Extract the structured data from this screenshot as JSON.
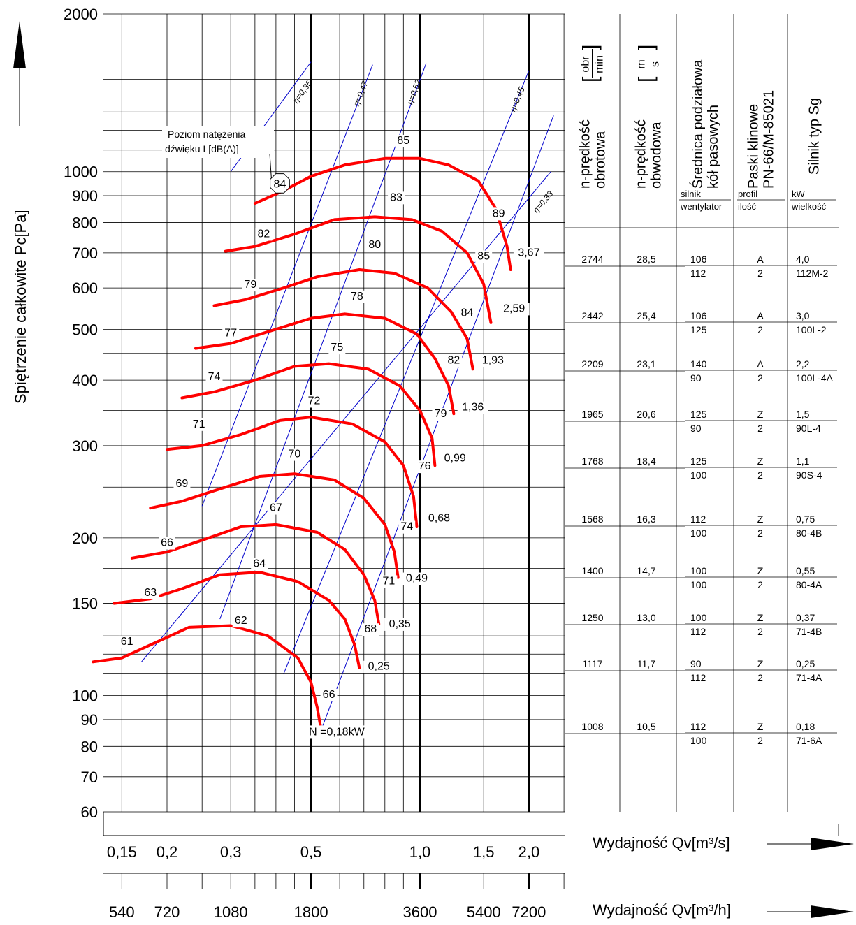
{
  "chart_data": {
    "type": "line",
    "y_axis_title": "Spiętrzenie  całkowite    Pc[Pa]",
    "x_axis_title_m3s": "Wydajność  Qv[m³/s]",
    "x_axis_title_m3h": "Wydajność  Qv[m³/h]",
    "y_scale": "log",
    "x_scale": "log",
    "ylim": [
      60,
      2000
    ],
    "xlim": [
      0.14,
      2.5
    ],
    "y_tick_labels": [
      {
        "v": 2000,
        "t": "2000"
      },
      {
        "v": 1000,
        "t": "1000"
      },
      {
        "v": 900,
        "t": "900"
      },
      {
        "v": 800,
        "t": "800"
      },
      {
        "v": 700,
        "t": "700"
      },
      {
        "v": 600,
        "t": "600"
      },
      {
        "v": 500,
        "t": "500"
      },
      {
        "v": 400,
        "t": "400"
      },
      {
        "v": 300,
        "t": "300"
      },
      {
        "v": 200,
        "t": "200"
      },
      {
        "v": 150,
        "t": "150"
      },
      {
        "v": 100,
        "t": "100"
      },
      {
        "v": 90,
        "t": "90"
      },
      {
        "v": 80,
        "t": "80"
      },
      {
        "v": 70,
        "t": "70"
      },
      {
        "v": 60,
        "t": "60"
      }
    ],
    "x_tick_labels_m3s": [
      {
        "v": 0.15,
        "t": "0,15"
      },
      {
        "v": 0.2,
        "t": "0,2"
      },
      {
        "v": 0.3,
        "t": "0,3"
      },
      {
        "v": 0.5,
        "t": "0,5"
      },
      {
        "v": 1.0,
        "t": "1,0"
      },
      {
        "v": 1.5,
        "t": "1,5"
      },
      {
        "v": 2.0,
        "t": "2,0"
      }
    ],
    "x_tick_labels_m3h": [
      {
        "v": 0.15,
        "t": "540"
      },
      {
        "v": 0.2,
        "t": "720"
      },
      {
        "v": 0.3,
        "t": "1080"
      },
      {
        "v": 0.5,
        "t": "1800"
      },
      {
        "v": 1.0,
        "t": "3600"
      },
      {
        "v": 1.5,
        "t": "5400"
      },
      {
        "v": 2.0,
        "t": "7200"
      }
    ],
    "efficiency_lines": [
      {
        "label": "η=0,35",
        "points": [
          [
            0.3,
            1000
          ],
          [
            0.5,
            1620
          ]
        ]
      },
      {
        "label": "η=0,47",
        "points": [
          [
            0.25,
            230
          ],
          [
            0.74,
            1600
          ]
        ]
      },
      {
        "label": "η=0,52",
        "points": [
          [
            0.28,
            140
          ],
          [
            1.04,
            1610
          ]
        ]
      },
      {
        "label": "η=0,45",
        "points": [
          [
            0.42,
            110
          ],
          [
            2.0,
            1560
          ]
        ]
      },
      {
        "label": "η=0,33",
        "points": [
          [
            0.17,
            116
          ],
          [
            2.3,
            1000
          ]
        ]
      }
    ],
    "power_line": [
      [
        0.53,
        85
      ],
      [
        2.34,
        1280
      ]
    ],
    "speed_curves": [
      {
        "rpm": 2744,
        "power": "3,67",
        "points": [
          [
            0.35,
            870
          ],
          [
            0.42,
            920
          ],
          [
            0.5,
            980
          ],
          [
            0.62,
            1030
          ],
          [
            0.8,
            1060
          ],
          [
            1.0,
            1060
          ],
          [
            1.2,
            1030
          ],
          [
            1.45,
            960
          ],
          [
            1.62,
            850
          ],
          [
            1.74,
            720
          ],
          [
            1.78,
            650
          ]
        ]
      },
      {
        "rpm": 2442,
        "power": "2,59",
        "points": [
          [
            0.29,
            705
          ],
          [
            0.35,
            720
          ],
          [
            0.45,
            760
          ],
          [
            0.58,
            810
          ],
          [
            0.75,
            820
          ],
          [
            0.95,
            810
          ],
          [
            1.15,
            770
          ],
          [
            1.35,
            700
          ],
          [
            1.5,
            610
          ],
          [
            1.57,
            515
          ]
        ]
      },
      {
        "rpm": 2209,
        "power": "1,93",
        "points": [
          [
            0.27,
            555
          ],
          [
            0.33,
            570
          ],
          [
            0.42,
            600
          ],
          [
            0.52,
            630
          ],
          [
            0.68,
            650
          ],
          [
            0.85,
            640
          ],
          [
            1.05,
            600
          ],
          [
            1.22,
            540
          ],
          [
            1.35,
            480
          ],
          [
            1.4,
            420
          ]
        ]
      },
      {
        "rpm": 1965,
        "power": "1,36",
        "points": [
          [
            0.24,
            460
          ],
          [
            0.3,
            470
          ],
          [
            0.38,
            495
          ],
          [
            0.5,
            525
          ],
          [
            0.62,
            535
          ],
          [
            0.8,
            525
          ],
          [
            0.98,
            490
          ],
          [
            1.1,
            440
          ],
          [
            1.2,
            390
          ],
          [
            1.24,
            345
          ]
        ]
      },
      {
        "rpm": 1768,
        "power": "0,99",
        "points": [
          [
            0.22,
            370
          ],
          [
            0.27,
            380
          ],
          [
            0.35,
            400
          ],
          [
            0.45,
            425
          ],
          [
            0.56,
            430
          ],
          [
            0.72,
            420
          ],
          [
            0.88,
            390
          ],
          [
            1.0,
            350
          ],
          [
            1.08,
            310
          ],
          [
            1.1,
            275
          ]
        ]
      },
      {
        "rpm": 1568,
        "power": "0,68",
        "points": [
          [
            0.2,
            295
          ],
          [
            0.25,
            300
          ],
          [
            0.32,
            315
          ],
          [
            0.41,
            335
          ],
          [
            0.5,
            340
          ],
          [
            0.65,
            330
          ],
          [
            0.8,
            305
          ],
          [
            0.9,
            275
          ],
          [
            0.96,
            240
          ],
          [
            0.98,
            210
          ]
        ]
      },
      {
        "rpm": 1400,
        "power": "0,49",
        "points": [
          [
            0.18,
            228
          ],
          [
            0.22,
            235
          ],
          [
            0.28,
            248
          ],
          [
            0.36,
            262
          ],
          [
            0.45,
            265
          ],
          [
            0.58,
            258
          ],
          [
            0.7,
            238
          ],
          [
            0.8,
            212
          ],
          [
            0.85,
            188
          ],
          [
            0.87,
            168
          ]
        ]
      },
      {
        "rpm": 1250,
        "power": "0,35",
        "points": [
          [
            0.16,
            183
          ],
          [
            0.2,
            188
          ],
          [
            0.25,
            198
          ],
          [
            0.32,
            210
          ],
          [
            0.4,
            212
          ],
          [
            0.52,
            205
          ],
          [
            0.62,
            190
          ],
          [
            0.7,
            170
          ],
          [
            0.75,
            152
          ],
          [
            0.77,
            137
          ]
        ]
      },
      {
        "rpm": 1117,
        "power": "0,25",
        "points": [
          [
            0.143,
            150
          ],
          [
            0.18,
            153
          ],
          [
            0.22,
            160
          ],
          [
            0.28,
            170
          ],
          [
            0.36,
            172
          ],
          [
            0.46,
            165
          ],
          [
            0.56,
            152
          ],
          [
            0.62,
            140
          ],
          [
            0.66,
            125
          ],
          [
            0.68,
            113
          ]
        ]
      },
      {
        "rpm": 1008,
        "power": "N  =0,18kW",
        "points": [
          [
            0.125,
            116
          ],
          [
            0.15,
            118
          ],
          [
            0.18,
            125
          ],
          [
            0.23,
            135
          ],
          [
            0.3,
            136
          ],
          [
            0.38,
            130
          ],
          [
            0.46,
            118
          ],
          [
            0.5,
            106
          ],
          [
            0.52,
            95
          ],
          [
            0.535,
            85
          ]
        ]
      }
    ],
    "sound_labels": [
      {
        "t": "85",
        "x": 0.9,
        "y": 1130
      },
      {
        "t": "89",
        "x": 1.65,
        "y": 820
      },
      {
        "t": "82",
        "x": 0.37,
        "y": 750
      },
      {
        "t": "83",
        "x": 0.86,
        "y": 880
      },
      {
        "t": "85",
        "x": 1.5,
        "y": 680
      },
      {
        "t": "79",
        "x": 0.34,
        "y": 600
      },
      {
        "t": "80",
        "x": 0.75,
        "y": 715
      },
      {
        "t": "84",
        "x": 1.35,
        "y": 530
      },
      {
        "t": "77",
        "x": 0.3,
        "y": 485
      },
      {
        "t": "78",
        "x": 0.67,
        "y": 570
      },
      {
        "t": "82",
        "x": 1.24,
        "y": 430
      },
      {
        "t": "74",
        "x": 0.27,
        "y": 400
      },
      {
        "t": "75",
        "x": 0.59,
        "y": 455
      },
      {
        "t": "79",
        "x": 1.14,
        "y": 340
      },
      {
        "t": "71",
        "x": 0.245,
        "y": 325
      },
      {
        "t": "72",
        "x": 0.51,
        "y": 360
      },
      {
        "t": "76",
        "x": 1.03,
        "y": 270
      },
      {
        "t": "69",
        "x": 0.22,
        "y": 250
      },
      {
        "t": "70",
        "x": 0.45,
        "y": 285
      },
      {
        "t": "74",
        "x": 0.92,
        "y": 207
      },
      {
        "t": "66",
        "x": 0.2,
        "y": 193
      },
      {
        "t": "67",
        "x": 0.4,
        "y": 225
      },
      {
        "t": "71",
        "x": 0.82,
        "y": 163
      },
      {
        "t": "63",
        "x": 0.18,
        "y": 155
      },
      {
        "t": "64",
        "x": 0.36,
        "y": 176
      },
      {
        "t": "68",
        "x": 0.73,
        "y": 132
      },
      {
        "t": "61",
        "x": 0.155,
        "y": 125
      },
      {
        "t": "62",
        "x": 0.32,
        "y": 137
      },
      {
        "t": "66",
        "x": 0.56,
        "y": 99
      }
    ],
    "power_labels": [
      {
        "t": "3,67",
        "x": 2.0,
        "y": 690
      },
      {
        "t": "2,59",
        "x": 1.82,
        "y": 540
      },
      {
        "t": "1,93",
        "x": 1.59,
        "y": 430
      },
      {
        "t": "1,36",
        "x": 1.4,
        "y": 350
      },
      {
        "t": "0,99",
        "x": 1.25,
        "y": 280
      },
      {
        "t": "0,68",
        "x": 1.13,
        "y": 215
      },
      {
        "t": "0,49",
        "x": 0.98,
        "y": 165
      },
      {
        "t": "0,35",
        "x": 0.88,
        "y": 135
      },
      {
        "t": "0,25",
        "x": 0.77,
        "y": 112
      }
    ],
    "callout": {
      "line1": "Poziom natężenia",
      "line2": "dźwięku L[dB(A)]",
      "marker": "84"
    },
    "table": {
      "headers": [
        {
          "line1": "n-prędkość",
          "line2": "obrotowa",
          "unit_num": "obr",
          "unit_den": "min"
        },
        {
          "line1": "n-prędkość",
          "line2": "obwodowa",
          "unit_num": "m",
          "unit_den": "s"
        },
        {
          "line1": "Średnica podziałowa",
          "line2": "kół pasowych",
          "sub_top": "silnik",
          "sub_bot": "wentylator"
        },
        {
          "line1": "Paski klinowe",
          "line2": "PN-66/M-85021",
          "sub_top": "profil",
          "sub_bot": "ilość"
        },
        {
          "line1": "Silnik typ Sg",
          "line2": "",
          "sub_top": "kW",
          "sub_bot": "wielkość"
        }
      ],
      "rows": [
        {
          "rpm": "2744",
          "v": "28,5",
          "d1": "106",
          "d2": "112",
          "prof": "A",
          "qty": "2",
          "kw": "4,0",
          "size": "112M-2"
        },
        {
          "rpm": "2442",
          "v": "25,4",
          "d1": "106",
          "d2": "125",
          "prof": "A",
          "qty": "2",
          "kw": "3,0",
          "size": "100L-2"
        },
        {
          "rpm": "2209",
          "v": "23,1",
          "d1": "140",
          "d2": "90",
          "prof": "A",
          "qty": "2",
          "kw": "2,2",
          "size": "100L-4A"
        },
        {
          "rpm": "1965",
          "v": "20,6",
          "d1": "125",
          "d2": "90",
          "prof": "Z",
          "qty": "2",
          "kw": "1,5",
          "size": "90L-4"
        },
        {
          "rpm": "1768",
          "v": "18,4",
          "d1": "125",
          "d2": "100",
          "prof": "Z",
          "qty": "2",
          "kw": "1,1",
          "size": "90S-4"
        },
        {
          "rpm": "1568",
          "v": "16,3",
          "d1": "112",
          "d2": "100",
          "prof": "Z",
          "qty": "2",
          "kw": "0,75",
          "size": "80-4B"
        },
        {
          "rpm": "1400",
          "v": "14,7",
          "d1": "100",
          "d2": "100",
          "prof": "Z",
          "qty": "2",
          "kw": "0,55",
          "size": "80-4A"
        },
        {
          "rpm": "1250",
          "v": "13,0",
          "d1": "100",
          "d2": "112",
          "prof": "Z",
          "qty": "2",
          "kw": "0,37",
          "size": "71-4B"
        },
        {
          "rpm": "1117",
          "v": "11,7",
          "d1": "90",
          "d2": "112",
          "prof": "Z",
          "qty": "2",
          "kw": "0,25",
          "size": "71-4A"
        },
        {
          "rpm": "1008",
          "v": "10,5",
          "d1": "112",
          "d2": "100",
          "prof": "Z",
          "qty": "2",
          "kw": "0,18",
          "size": "71-6A"
        }
      ]
    },
    "colors": {
      "curve": "#ff0000",
      "eff_line": "#0000cc",
      "grid": "#000000"
    }
  }
}
